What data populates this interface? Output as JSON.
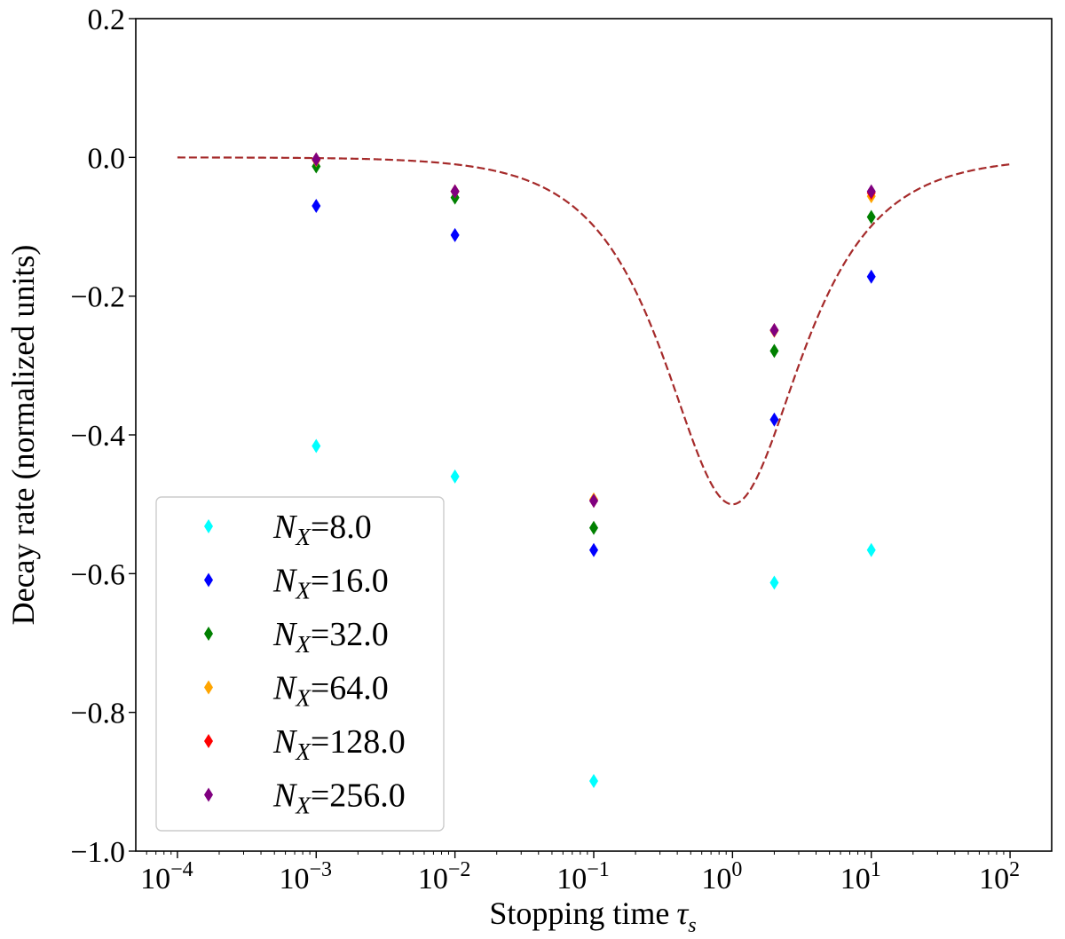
{
  "chart_data": {
    "type": "scatter",
    "title": "",
    "xlabel": "Stopping time",
    "xlabel_symbol": "τ",
    "xlabel_subscript": "s",
    "ylabel": "Decay rate (normalized units)",
    "xscale": "log",
    "xlim_log10": [
      -4.3,
      2.3
    ],
    "ylim": [
      -1.0,
      0.2
    ],
    "x_ticks": [
      {
        "exp": -4,
        "base": "10",
        "sup": "−4"
      },
      {
        "exp": -3,
        "base": "10",
        "sup": "−3"
      },
      {
        "exp": -2,
        "base": "10",
        "sup": "−2"
      },
      {
        "exp": -1,
        "base": "10",
        "sup": "−1"
      },
      {
        "exp": 0,
        "base": "10",
        "sup": "0"
      },
      {
        "exp": 1,
        "base": "10",
        "sup": "1"
      },
      {
        "exp": 2,
        "base": "10",
        "sup": "2"
      }
    ],
    "y_ticks": [
      {
        "value": 0.2,
        "label": "0.2"
      },
      {
        "value": 0.0,
        "label": "0.0"
      },
      {
        "value": -0.2,
        "label": "−0.2"
      },
      {
        "value": -0.4,
        "label": "−0.4"
      },
      {
        "value": -0.6,
        "label": "−0.6"
      },
      {
        "value": -0.8,
        "label": "−0.8"
      },
      {
        "value": -1.0,
        "label": "−1.0"
      }
    ],
    "legend_position": "lower-left",
    "series": [
      {
        "name": "8.0",
        "legend_prefix": "N",
        "legend_sub": "X",
        "color": "#00ffff",
        "x": [
          0.001,
          0.01,
          0.1,
          2,
          10
        ],
        "y": [
          -0.416,
          -0.46,
          -0.899,
          -0.613,
          -0.566
        ]
      },
      {
        "name": "16.0",
        "legend_prefix": "N",
        "legend_sub": "X",
        "color": "#0000ff",
        "x": [
          0.001,
          0.01,
          0.1,
          2,
          10
        ],
        "y": [
          -0.07,
          -0.112,
          -0.566,
          -0.378,
          -0.172
        ]
      },
      {
        "name": "32.0",
        "legend_prefix": "N",
        "legend_sub": "X",
        "color": "#008000",
        "x": [
          0.001,
          0.01,
          0.1,
          2,
          10
        ],
        "y": [
          -0.013,
          -0.058,
          -0.534,
          -0.279,
          -0.086
        ]
      },
      {
        "name": "64.0",
        "legend_prefix": "N",
        "legend_sub": "X",
        "color": "#ffa500",
        "x": [
          0.001,
          0.01,
          0.1,
          2,
          10
        ],
        "y": [
          -0.004,
          -0.049,
          -0.493,
          -0.25,
          -0.056
        ]
      },
      {
        "name": "128.0",
        "legend_prefix": "N",
        "legend_sub": "X",
        "color": "#ff0000",
        "x": [
          0.001,
          0.01,
          0.1,
          2,
          10
        ],
        "y": [
          -0.003,
          -0.049,
          -0.495,
          -0.249,
          -0.051
        ]
      },
      {
        "name": "256.0",
        "legend_prefix": "N",
        "legend_sub": "X",
        "color": "#800080",
        "x": [
          0.001,
          0.01,
          0.1,
          2,
          10
        ],
        "y": [
          -0.003,
          -0.049,
          -0.495,
          -0.249,
          -0.049
        ]
      }
    ],
    "reference_curve": {
      "style": "dashed",
      "color": "#a52a2a",
      "formula": "-tau/(1+tau^2)",
      "x_range_log10": [
        -4,
        2
      ]
    }
  }
}
